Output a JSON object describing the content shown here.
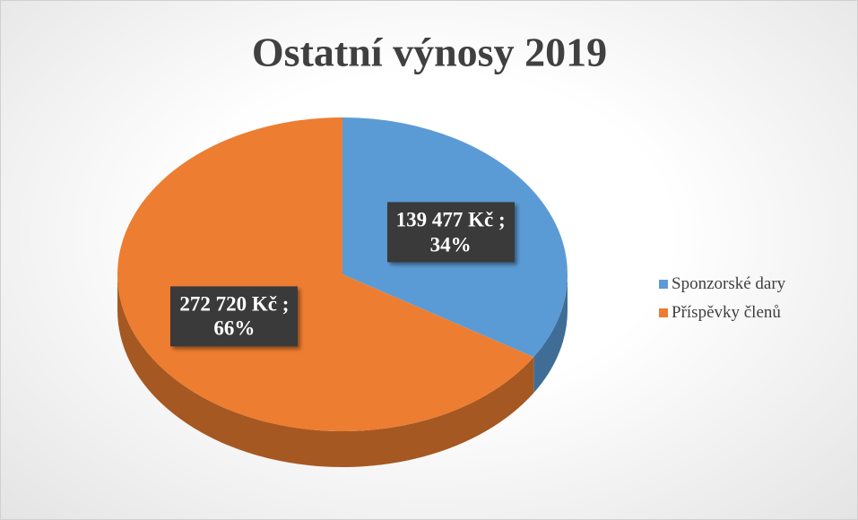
{
  "chart_data": {
    "type": "pie",
    "title": "Ostatní výnosy 2019",
    "categories": [
      "Sponzorské dary",
      "Příspěvky členů"
    ],
    "values": [
      139477,
      272720
    ],
    "value_labels": [
      "139 477 Kč ;\n34%",
      "272 720 Kč ;\n66%"
    ],
    "colors": [
      "#5b9bd5",
      "#ed7d31"
    ],
    "legend": "right"
  }
}
